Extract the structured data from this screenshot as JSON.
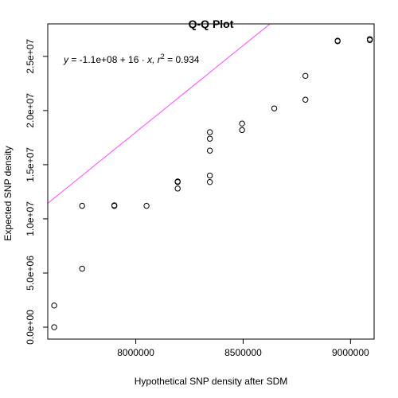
{
  "chart_data": {
    "type": "scatter",
    "title": "Q-Q Plot",
    "xlabel": "Hypothetical SNP density after SDM",
    "ylabel": "Expected SNP density",
    "xlim": [
      7590000,
      9110000
    ],
    "ylim": [
      -1100000,
      28000000
    ],
    "x_ticks": [
      8000000,
      8500000,
      9000000
    ],
    "x_tick_labels": [
      "8000000",
      "8500000",
      "9000000"
    ],
    "y_ticks": [
      0,
      5000000,
      10000000,
      15000000,
      20000000,
      25000000
    ],
    "y_tick_labels": [
      "0.0e+00",
      "5.0e+06",
      "1.0e+07",
      "1.5e+07",
      "2.0e+07",
      "2.5e+07"
    ],
    "annotation": {
      "y_var": "y",
      "eq_middle": " = -1.1e+08 + 16 · ",
      "x_var": "x",
      "r2_prefix": ",  r",
      "r2_exp": "2",
      "r2_value": " = 0.934"
    },
    "regression": {
      "intercept": -110000000,
      "slope": 16
    },
    "colors": {
      "points": "#000000",
      "line": "#ff44ff"
    },
    "grid": false,
    "points": [
      {
        "x": 7620000,
        "y": 0
      },
      {
        "x": 7620000,
        "y": 2000000
      },
      {
        "x": 7750000,
        "y": 5400000
      },
      {
        "x": 7750000,
        "y": 11200000
      },
      {
        "x": 7900000,
        "y": 11200000
      },
      {
        "x": 7900000,
        "y": 11250000
      },
      {
        "x": 8050000,
        "y": 11200000
      },
      {
        "x": 8195000,
        "y": 12800000
      },
      {
        "x": 8195000,
        "y": 13400000
      },
      {
        "x": 8195000,
        "y": 13450000
      },
      {
        "x": 8345000,
        "y": 13400000
      },
      {
        "x": 8345000,
        "y": 14000000
      },
      {
        "x": 8345000,
        "y": 16300000
      },
      {
        "x": 8345000,
        "y": 17400000
      },
      {
        "x": 8345000,
        "y": 18000000
      },
      {
        "x": 8495000,
        "y": 18200000
      },
      {
        "x": 8495000,
        "y": 18800000
      },
      {
        "x": 8645000,
        "y": 20200000
      },
      {
        "x": 8790000,
        "y": 21000000
      },
      {
        "x": 8790000,
        "y": 23200000
      },
      {
        "x": 8940000,
        "y": 26400000
      },
      {
        "x": 8940000,
        "y": 26450000
      },
      {
        "x": 9090000,
        "y": 26500000
      },
      {
        "x": 9090000,
        "y": 26600000
      }
    ]
  }
}
